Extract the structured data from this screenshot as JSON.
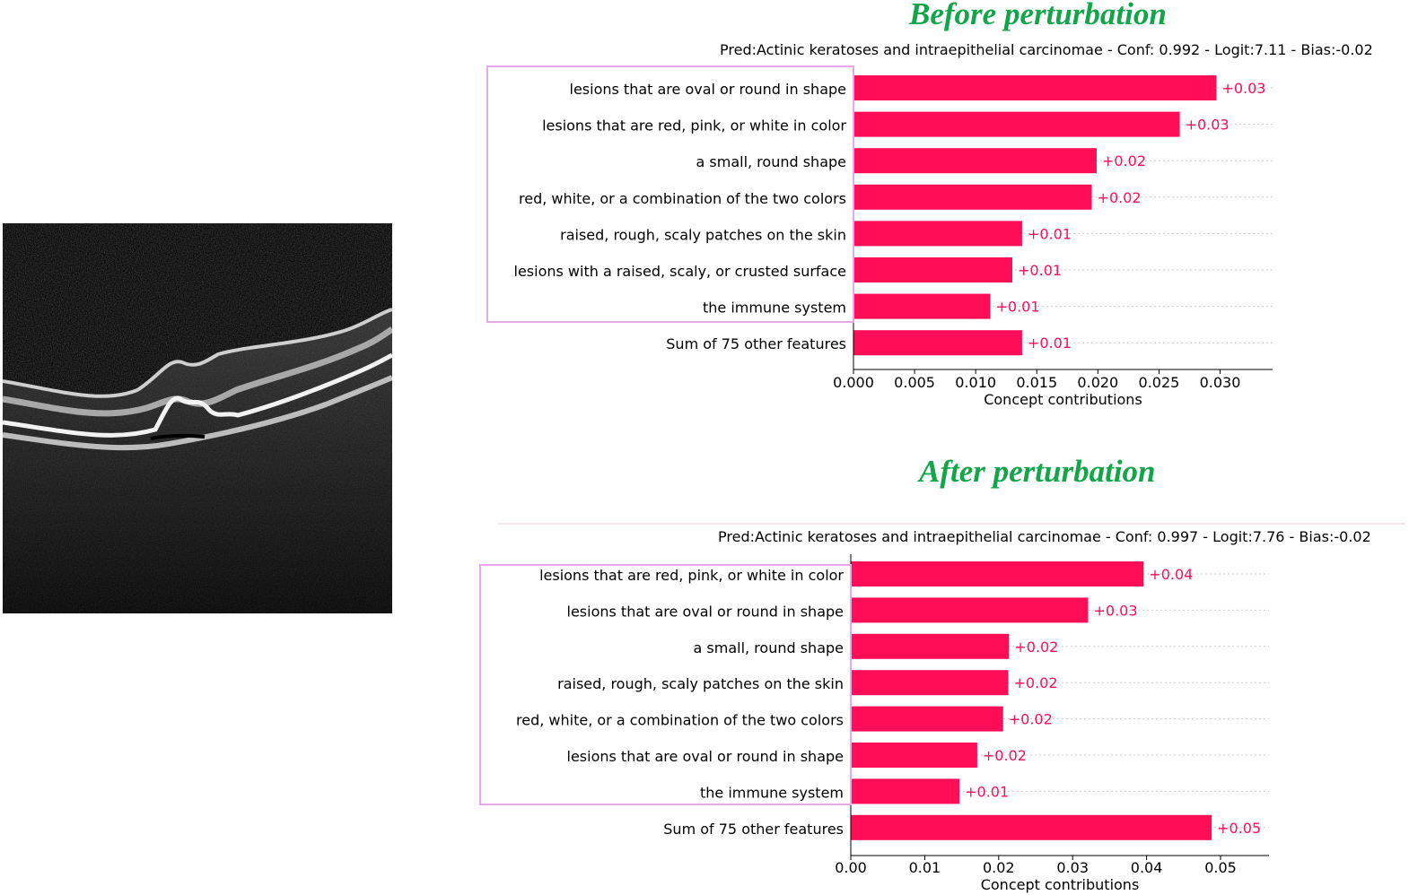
{
  "before": {
    "heading": "Before perturbation",
    "pred_text": "Pred:Actinic keratoses and intraepithelial carcinomae - Conf: 0.992 - Logit:7.11 - Bias:-0.02"
  },
  "after": {
    "heading": "After perturbation",
    "pred_text": "Pred:Actinic keratoses and intraepithelial carcinomae - Conf: 0.997 - Logit:7.76 - Bias:-0.02"
  },
  "colors": {
    "bar": "#ff0d57",
    "heading": "#12a54a",
    "highlight_box": "#e6a8e8"
  },
  "chart_data": [
    {
      "type": "bar",
      "orientation": "horizontal",
      "title": "Before perturbation",
      "xlabel": "Concept contributions",
      "ylabel": "",
      "xlim": [
        0,
        0.0345
      ],
      "ticks": [
        "0.000",
        "0.005",
        "0.010",
        "0.015",
        "0.020",
        "0.025",
        "0.030"
      ],
      "tick_values": [
        0,
        0.005,
        0.01,
        0.015,
        0.02,
        0.025,
        0.03
      ],
      "categories": [
        "lesions that are oval or round in shape",
        "lesions that are red, pink, or white in color",
        "a small, round shape",
        "red, white, or a combination of the two colors",
        "raised, rough, scaly patches on the skin",
        "lesions with a raised, scaly, or crusted surface",
        "the immune system",
        "Sum of 75 other features"
      ],
      "values": [
        0.0297,
        0.0267,
        0.0199,
        0.0195,
        0.0138,
        0.013,
        0.0112,
        0.0138
      ],
      "labels": [
        "+0.03",
        "+0.03",
        "+0.02",
        "+0.02",
        "+0.01",
        "+0.01",
        "+0.01",
        "+0.01"
      ],
      "highlighted_count": 7
    },
    {
      "type": "bar",
      "orientation": "horizontal",
      "title": "After perturbation",
      "xlabel": "Concept contributions",
      "ylabel": "",
      "xlim": [
        0,
        0.0565
      ],
      "ticks": [
        "0.00",
        "0.01",
        "0.02",
        "0.03",
        "0.04",
        "0.05"
      ],
      "tick_values": [
        0,
        0.01,
        0.02,
        0.03,
        0.04,
        0.05
      ],
      "categories": [
        "lesions that are red, pink, or white in color",
        "lesions that are oval or round in shape",
        "a small, round shape",
        "raised, rough, scaly patches on the skin",
        "red, white, or a combination of the two colors",
        "lesions that are oval or round in shape",
        "the immune system",
        "Sum of 75 other features"
      ],
      "values": [
        0.0396,
        0.0321,
        0.0214,
        0.0213,
        0.0206,
        0.0171,
        0.0147,
        0.0488
      ],
      "labels": [
        "+0.04",
        "+0.03",
        "+0.02",
        "+0.02",
        "+0.02",
        "+0.02",
        "+0.01",
        "+0.05"
      ],
      "highlighted_count": 7
    }
  ]
}
